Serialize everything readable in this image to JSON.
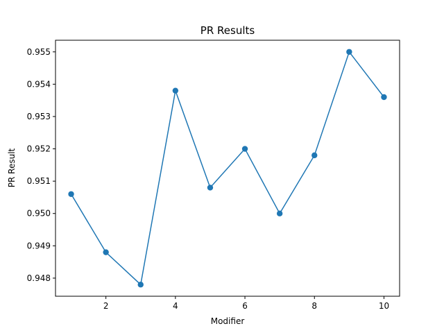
{
  "chart_data": {
    "type": "line",
    "title": "PR Results",
    "xlabel": "Modifier",
    "ylabel": "PR Result",
    "x": [
      1,
      2,
      3,
      4,
      5,
      6,
      7,
      8,
      9,
      10
    ],
    "series": [
      {
        "values": [
          0.9506,
          0.9488,
          0.9478,
          0.9538,
          0.9508,
          0.952,
          0.95,
          0.9518,
          0.955,
          0.9536
        ],
        "color": "#1f77b4",
        "marker": "circle"
      }
    ],
    "xlim": [
      0.55,
      10.45
    ],
    "ylim": [
      0.94744,
      0.95536
    ],
    "xticks": [
      2,
      4,
      6,
      8,
      10
    ],
    "xtick_labels": [
      "2",
      "4",
      "6",
      "8",
      "10"
    ],
    "yticks": [
      0.948,
      0.949,
      0.95,
      0.951,
      0.952,
      0.953,
      0.954,
      0.955
    ],
    "ytick_labels": [
      "0.948",
      "0.949",
      "0.950",
      "0.951",
      "0.952",
      "0.953",
      "0.954",
      "0.955"
    ],
    "grid": false,
    "legend": "none"
  }
}
